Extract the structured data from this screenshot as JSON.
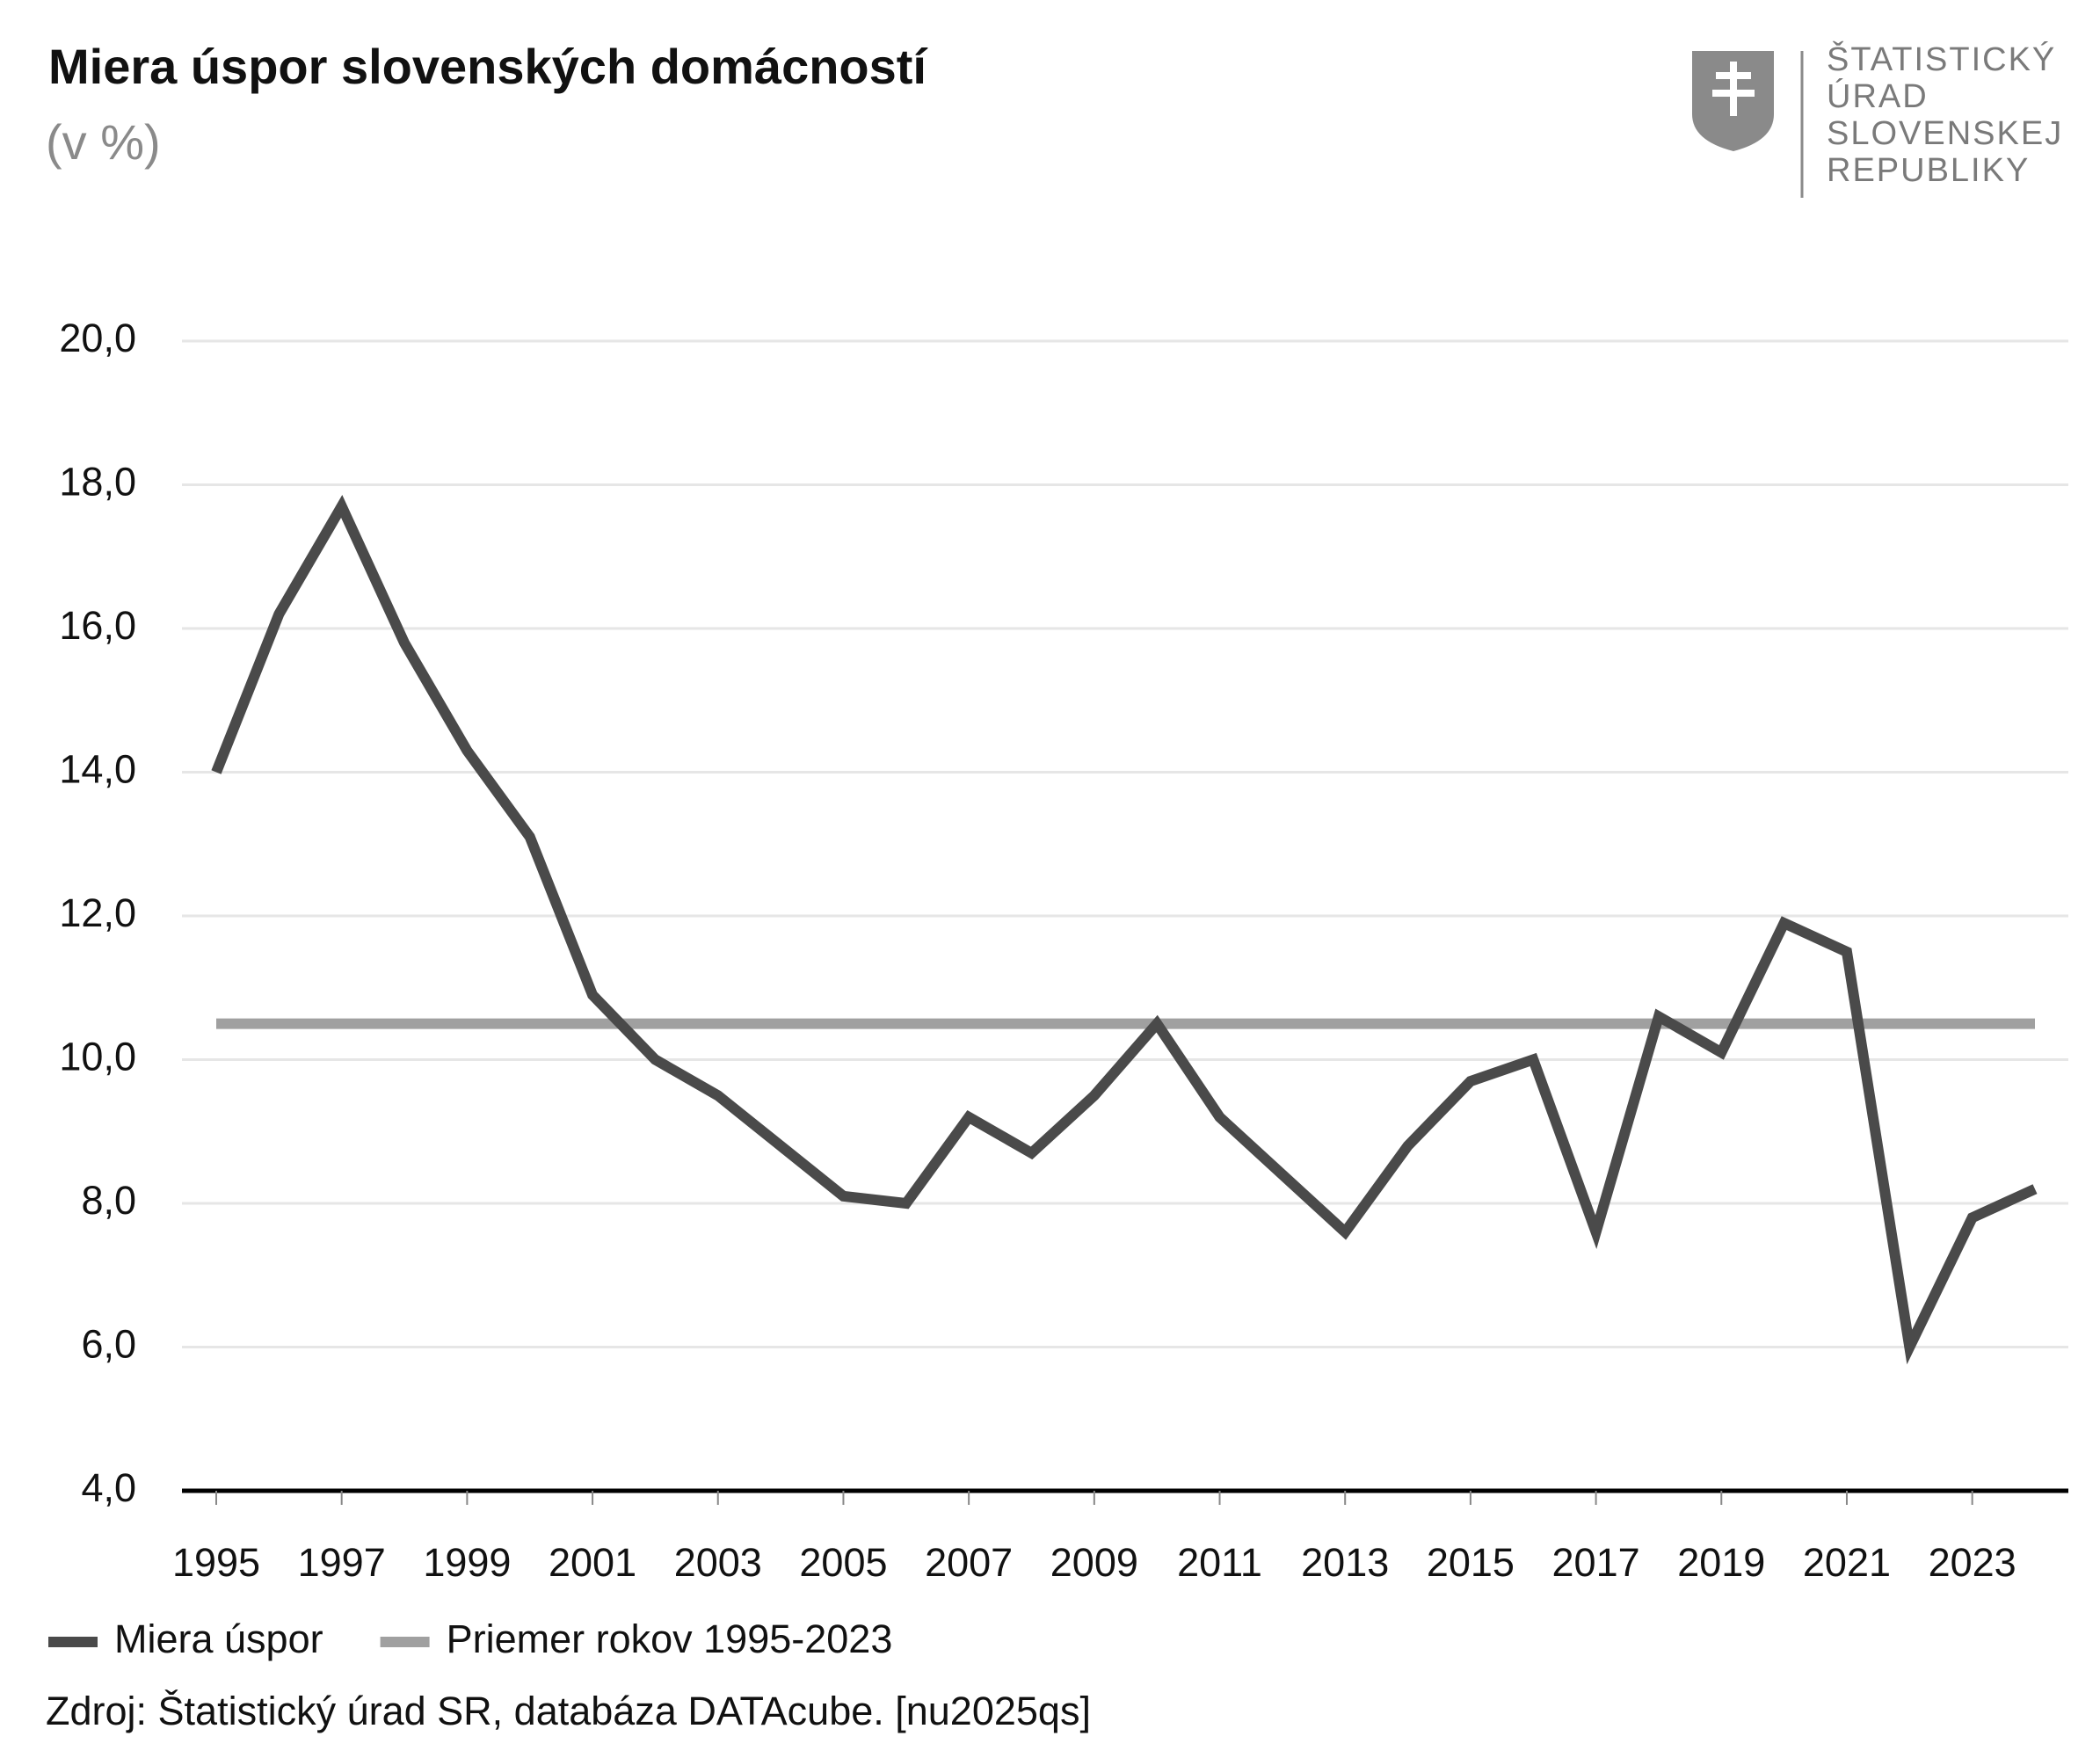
{
  "chart_data": {
    "type": "line",
    "title": "Miera úspor slovenských domácností",
    "subtitle": "(v %)",
    "categories": [
      "1995",
      null,
      "1997",
      null,
      "1999",
      null,
      "2001",
      null,
      "2003",
      null,
      "2005",
      null,
      "2007",
      null,
      "2009",
      null,
      "2011",
      null,
      "2013",
      null,
      "2015",
      null,
      "2017",
      null,
      "2019",
      null,
      "2021",
      null,
      "2023",
      null
    ],
    "series": [
      {
        "name": "Miera úspor",
        "color": "#4a4a4a",
        "values": [
          14.0,
          16.2,
          17.7,
          15.8,
          14.3,
          13.1,
          10.9,
          10.0,
          9.5,
          8.8,
          8.1,
          8.0,
          9.2,
          8.7,
          9.5,
          10.5,
          9.2,
          8.4,
          7.6,
          8.8,
          9.7,
          10.0,
          7.6,
          10.6,
          10.1,
          11.9,
          11.5,
          6.0,
          7.8,
          8.2
        ]
      },
      {
        "name": "Priemer rokov 1995-2023",
        "color": "#a0a0a0",
        "values": [
          10.5,
          10.5,
          10.5,
          10.5,
          10.5,
          10.5,
          10.5,
          10.5,
          10.5,
          10.5,
          10.5,
          10.5,
          10.5,
          10.5,
          10.5,
          10.5,
          10.5,
          10.5,
          10.5,
          10.5,
          10.5,
          10.5,
          10.5,
          10.5,
          10.5,
          10.5,
          10.5,
          10.5,
          10.5,
          10.5
        ]
      }
    ],
    "ylim": [
      4,
      20
    ],
    "yticks": [
      {
        "value": 4,
        "label": "4,0"
      },
      {
        "value": 6,
        "label": "6,0"
      },
      {
        "value": 8,
        "label": "8,0"
      },
      {
        "value": 10,
        "label": "10,0"
      },
      {
        "value": 12,
        "label": "12,0"
      },
      {
        "value": 14,
        "label": "14,0"
      },
      {
        "value": 16,
        "label": "16,0"
      },
      {
        "value": 18,
        "label": "18,0"
      },
      {
        "value": 20,
        "label": "20,0"
      }
    ],
    "grid": true,
    "source": "Zdroj: Štatistický úrad SR, databáza DATAcube. [nu2025qs]"
  },
  "logo": {
    "lines": [
      "ŠTATISTICKÝ",
      "ÚRAD",
      "SLOVENSKEJ",
      "REPUBLIKY"
    ]
  }
}
